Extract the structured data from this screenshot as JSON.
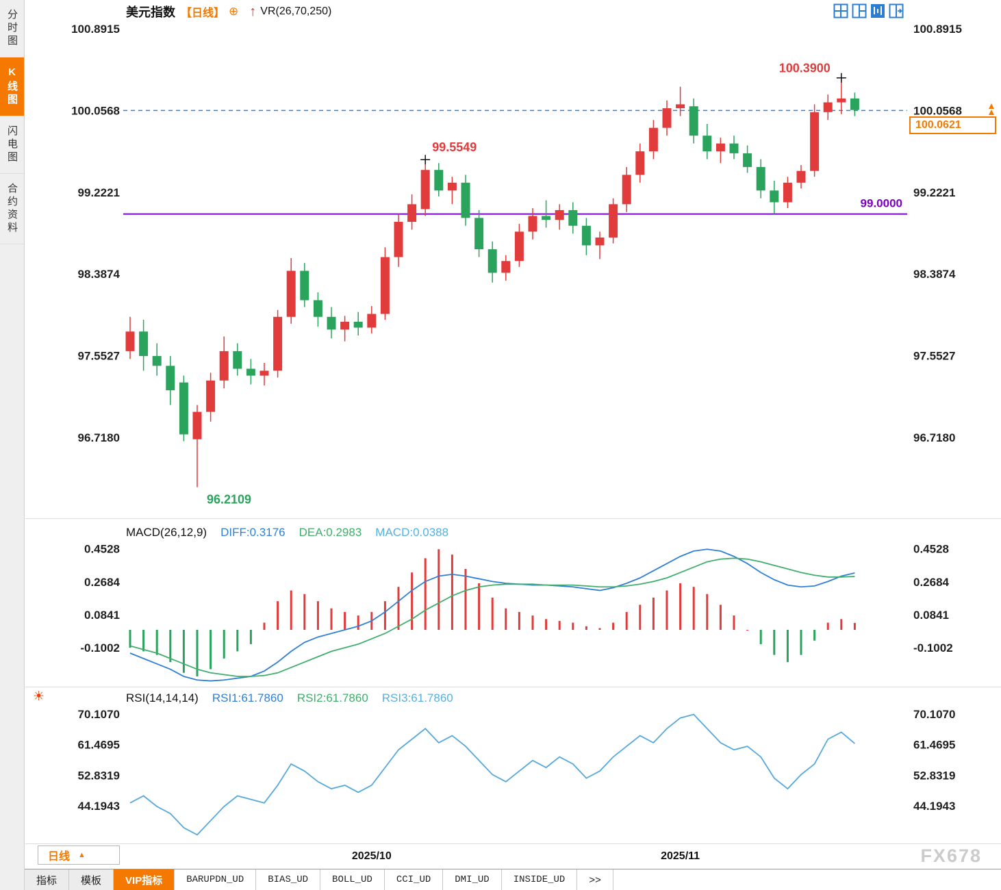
{
  "header": {
    "title": "美元指数",
    "period": "【日线】",
    "overlay_indicator": "VR(26,70,250)"
  },
  "icons": {
    "circle_plus": "⊕",
    "up_arrow": "↑",
    "sun": "☀",
    "triangle_up": "▲"
  },
  "sidebar": {
    "items": [
      {
        "label": "分时图",
        "active": false
      },
      {
        "label": "K线图",
        "active": true
      },
      {
        "label": "闪电图",
        "active": false
      },
      {
        "label": "合约资料",
        "active": false
      }
    ]
  },
  "price_box": {
    "value": "100.0621"
  },
  "bottom": {
    "period_label": "日线",
    "tabs": [
      "指标",
      "模板",
      "VIP指标",
      "BARUPDN_UD",
      "BIAS_UD",
      "BOLL_UD",
      "CCI_UD",
      "DMI_UD",
      "INSIDE_UD",
      ">>"
    ],
    "active_tab_index": 2
  },
  "watermark": "FX678",
  "colors": {
    "up": "#e23b3b",
    "down": "#2aa35c",
    "accent": "#f57900",
    "diff_line": "#2f7fd6",
    "dea_line": "#3fae6a",
    "rsi_line": "#54a8dc",
    "support": "#7a00c8",
    "dashed": "#2f7fd6",
    "axis_text": "#1f1f1f"
  },
  "chart_data": [
    {
      "type": "candlestick",
      "name": "美元指数 日线",
      "y_ticks": [
        100.8915,
        100.0568,
        99.2221,
        98.3874,
        97.5527,
        96.718
      ],
      "ylim": [
        95.95,
        100.97
      ],
      "x_axis": {
        "month_labels": [
          {
            "text": "2025/10",
            "index": 18
          },
          {
            "text": "2025/11",
            "index": 41
          }
        ]
      },
      "annotations": {
        "swing_high": {
          "text": "100.3900",
          "index": 53,
          "price": 100.39
        },
        "swing_mid_high": {
          "text": "99.5549",
          "index": 22,
          "price": 99.5549
        },
        "swing_low": {
          "text": "96.2109",
          "index": 5,
          "price": 96.2109
        },
        "support_line": {
          "text": "99.0000",
          "price": 99.0
        },
        "last_close_line": {
          "price": 100.0568
        },
        "current_price": {
          "text": "100.0621",
          "price": 100.0621
        }
      },
      "candles": [
        [
          97.6,
          97.95,
          97.52,
          97.8
        ],
        [
          97.8,
          97.92,
          97.4,
          97.55
        ],
        [
          97.55,
          97.68,
          97.35,
          97.45
        ],
        [
          97.45,
          97.55,
          97.05,
          97.2
        ],
        [
          97.28,
          97.35,
          96.68,
          96.75
        ],
        [
          96.7,
          97.05,
          96.2109,
          96.98
        ],
        [
          96.98,
          97.38,
          96.88,
          97.3
        ],
        [
          97.3,
          97.75,
          97.22,
          97.6
        ],
        [
          97.6,
          97.68,
          97.35,
          97.42
        ],
        [
          97.42,
          97.52,
          97.26,
          97.35
        ],
        [
          97.35,
          97.48,
          97.25,
          97.4
        ],
        [
          97.4,
          98.02,
          97.33,
          97.95
        ],
        [
          97.95,
          98.55,
          97.88,
          98.42
        ],
        [
          98.42,
          98.5,
          98.05,
          98.12
        ],
        [
          98.12,
          98.2,
          97.85,
          97.95
        ],
        [
          97.95,
          98.05,
          97.73,
          97.82
        ],
        [
          97.82,
          97.96,
          97.7,
          97.9
        ],
        [
          97.9,
          98.0,
          97.76,
          97.84
        ],
        [
          97.84,
          98.06,
          97.78,
          97.98
        ],
        [
          97.98,
          98.66,
          97.92,
          98.56
        ],
        [
          98.56,
          99.0,
          98.46,
          98.92
        ],
        [
          98.92,
          99.2,
          98.84,
          99.1
        ],
        [
          99.05,
          99.5549,
          98.98,
          99.45
        ],
        [
          99.45,
          99.52,
          99.18,
          99.24
        ],
        [
          99.24,
          99.38,
          99.1,
          99.32
        ],
        [
          99.32,
          99.4,
          98.88,
          98.96
        ],
        [
          98.96,
          99.04,
          98.56,
          98.64
        ],
        [
          98.64,
          98.72,
          98.3,
          98.4
        ],
        [
          98.4,
          98.58,
          98.32,
          98.52
        ],
        [
          98.52,
          98.9,
          98.46,
          98.82
        ],
        [
          98.82,
          99.06,
          98.74,
          98.98
        ],
        [
          98.98,
          99.14,
          98.86,
          98.94
        ],
        [
          98.94,
          99.1,
          98.84,
          99.04
        ],
        [
          99.04,
          99.12,
          98.8,
          98.88
        ],
        [
          98.88,
          98.96,
          98.58,
          98.68
        ],
        [
          98.68,
          98.82,
          98.54,
          98.76
        ],
        [
          98.76,
          99.16,
          98.7,
          99.1
        ],
        [
          99.1,
          99.48,
          99.02,
          99.4
        ],
        [
          99.4,
          99.72,
          99.32,
          99.64
        ],
        [
          99.64,
          99.96,
          99.56,
          99.88
        ],
        [
          99.88,
          100.16,
          99.8,
          100.08
        ],
        [
          100.08,
          100.3,
          100.0,
          100.12
        ],
        [
          100.1,
          100.18,
          99.72,
          99.8
        ],
        [
          99.8,
          99.92,
          99.56,
          99.64
        ],
        [
          99.64,
          99.78,
          99.52,
          99.72
        ],
        [
          99.72,
          99.8,
          99.56,
          99.62
        ],
        [
          99.62,
          99.7,
          99.42,
          99.48
        ],
        [
          99.48,
          99.56,
          99.16,
          99.24
        ],
        [
          99.24,
          99.34,
          99.0,
          99.12
        ],
        [
          99.12,
          99.38,
          99.06,
          99.32
        ],
        [
          99.32,
          99.5,
          99.26,
          99.44
        ],
        [
          99.44,
          100.12,
          99.38,
          100.04
        ],
        [
          100.04,
          100.22,
          99.96,
          100.14
        ],
        [
          100.14,
          100.39,
          100.02,
          100.18
        ],
        [
          100.18,
          100.24,
          100.0,
          100.0621
        ]
      ]
    },
    {
      "type": "bar",
      "title": "MACD(26,12,9)",
      "labels": {
        "diff": "DIFF:0.3176",
        "dea": "DEA:0.2983",
        "macd": "MACD:0.0388"
      },
      "y_ticks": [
        0.4528,
        0.2684,
        0.0841,
        -0.1002
      ],
      "hist": [
        -0.1,
        -0.12,
        -0.14,
        -0.18,
        -0.24,
        -0.26,
        -0.22,
        -0.16,
        -0.12,
        -0.08,
        0.04,
        0.16,
        0.22,
        0.2,
        0.16,
        0.12,
        0.1,
        0.08,
        0.1,
        0.16,
        0.24,
        0.32,
        0.4,
        0.45,
        0.42,
        0.34,
        0.26,
        0.18,
        0.12,
        0.1,
        0.08,
        0.06,
        0.05,
        0.04,
        0.02,
        0.01,
        0.04,
        0.1,
        0.14,
        0.18,
        0.22,
        0.26,
        0.24,
        0.2,
        0.14,
        0.08,
        0.0,
        -0.08,
        -0.14,
        -0.18,
        -0.14,
        -0.06,
        0.04,
        0.06,
        0.0388
      ],
      "diff": [
        -0.13,
        -0.16,
        -0.19,
        -0.22,
        -0.26,
        -0.28,
        -0.285,
        -0.28,
        -0.27,
        -0.26,
        -0.23,
        -0.18,
        -0.12,
        -0.07,
        -0.04,
        -0.02,
        0.0,
        0.02,
        0.05,
        0.1,
        0.16,
        0.22,
        0.27,
        0.3,
        0.31,
        0.3,
        0.285,
        0.27,
        0.26,
        0.255,
        0.25,
        0.25,
        0.245,
        0.24,
        0.23,
        0.22,
        0.235,
        0.26,
        0.29,
        0.33,
        0.37,
        0.41,
        0.44,
        0.45,
        0.44,
        0.41,
        0.37,
        0.32,
        0.28,
        0.25,
        0.24,
        0.245,
        0.27,
        0.3,
        0.3176
      ],
      "dea": [
        -0.09,
        -0.11,
        -0.13,
        -0.16,
        -0.19,
        -0.22,
        -0.24,
        -0.25,
        -0.26,
        -0.26,
        -0.255,
        -0.24,
        -0.21,
        -0.18,
        -0.15,
        -0.12,
        -0.1,
        -0.08,
        -0.05,
        -0.02,
        0.02,
        0.06,
        0.11,
        0.15,
        0.19,
        0.22,
        0.24,
        0.25,
        0.255,
        0.255,
        0.255,
        0.25,
        0.25,
        0.25,
        0.245,
        0.24,
        0.24,
        0.245,
        0.255,
        0.27,
        0.29,
        0.32,
        0.35,
        0.38,
        0.395,
        0.4,
        0.395,
        0.38,
        0.36,
        0.34,
        0.32,
        0.305,
        0.295,
        0.295,
        0.2983
      ]
    },
    {
      "type": "line",
      "title": "RSI(14,14,14)",
      "labels": {
        "rsi1": "RSI1:61.7860",
        "rsi2": "RSI2:61.7860",
        "rsi3": "RSI3:61.7860"
      },
      "y_ticks": [
        70.107,
        61.4695,
        52.8319,
        44.1943
      ],
      "rsi": [
        45,
        47,
        44,
        42,
        38,
        36,
        40,
        44,
        47,
        46,
        45,
        50,
        56,
        54,
        51,
        49,
        50,
        48,
        50,
        55,
        60,
        63,
        66,
        62,
        64,
        61,
        57,
        53,
        51,
        54,
        57,
        55,
        58,
        56,
        52,
        54,
        58,
        61,
        64,
        62,
        66,
        69,
        70,
        66,
        62,
        60,
        61,
        58,
        52,
        49,
        53,
        56,
        63,
        65,
        61.786
      ]
    }
  ]
}
